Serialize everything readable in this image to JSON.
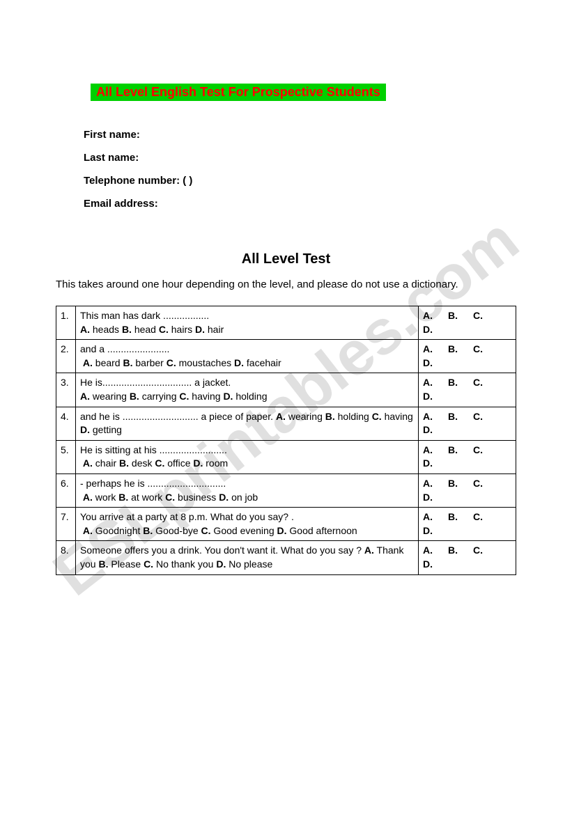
{
  "watermark": "ESLprintables.com",
  "title": "All Level  English Test For Prospective Students",
  "info": {
    "first_name_label": "First name:",
    "last_name_label": "Last name:",
    "telephone_label": "Telephone number: (                              )",
    "email_label": "Email address:"
  },
  "section_title": "All Level Test",
  "instruction": "This takes around one hour depending on the level, and please do not use a dictionary.",
  "answer_labels": {
    "a": "A.",
    "b": "B.",
    "c": "C.",
    "d": "D."
  },
  "questions": [
    {
      "num": "1.",
      "text": "This man has dark .................",
      "opts": [
        "heads",
        "head",
        "hairs",
        "hair"
      ]
    },
    {
      "num": "2.",
      "text": "and a .......................",
      "opts": [
        "beard",
        "barber",
        "moustaches",
        "facehair"
      ],
      "indent": true
    },
    {
      "num": "3.",
      "text": "He is................................. a jacket.",
      "opts": [
        "wearing",
        "carrying",
        "having",
        "holding"
      ]
    },
    {
      "num": "4.",
      "text": "and he is ............................ a piece of paper.",
      "opts": [
        "wearing",
        "holding",
        "having",
        "getting"
      ],
      "inline": true
    },
    {
      "num": "5.",
      "text": "He is sitting at his .........................",
      "opts": [
        "chair",
        "desk",
        "office",
        "room"
      ],
      "indent": true
    },
    {
      "num": "6.",
      "text": "- perhaps he is .............................",
      "opts": [
        "work",
        "at work",
        "business",
        "on job"
      ],
      "indent": true
    },
    {
      "num": "7.",
      "text": "You arrive at a party at 8 p.m. What do you say? .",
      "opts": [
        "Goodnight",
        "Good-bye",
        "Good evening",
        "Good afternoon"
      ],
      "indent": true
    },
    {
      "num": "8.",
      "text": "Someone offers you a drink. You don't want it. What do you say ?",
      "opts": [
        "Thank you",
        "Please",
        "No thank you",
        "No please"
      ],
      "inline": true
    }
  ]
}
